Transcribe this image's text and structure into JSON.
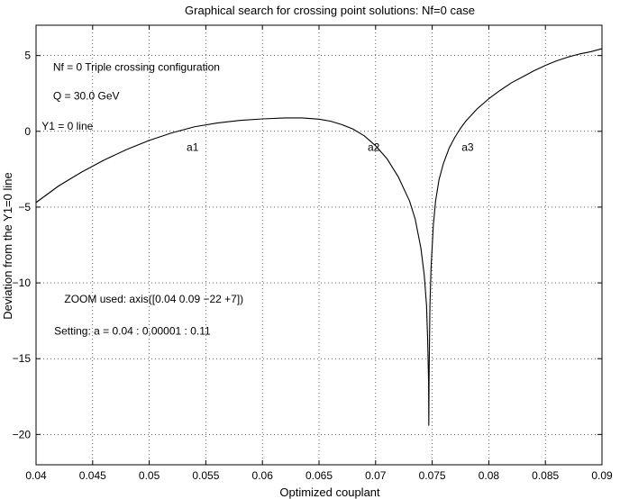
{
  "chart_data": {
    "type": "line",
    "title": "Graphical search for crossing point solutions: Nf=0 case",
    "xlabel": "Optimized couplant",
    "ylabel": "Deviation from the Y1=0 line",
    "xlim": [
      0.04,
      0.09
    ],
    "ylim": [
      -22,
      7
    ],
    "xticks": [
      0.04,
      0.045,
      0.05,
      0.055,
      0.06,
      0.065,
      0.07,
      0.075,
      0.08,
      0.085,
      0.09
    ],
    "xtick_labels": [
      "0.04",
      "0.045",
      "0.05",
      "0.055",
      "0.06",
      "0.065",
      "0.07",
      "0.075",
      "0.08",
      "0.085",
      "0.09"
    ],
    "yticks": [
      5,
      0,
      -5,
      -10,
      -15,
      -20
    ],
    "ytick_labels": [
      "5",
      "0",
      "−5",
      "−10",
      "−15",
      "−20"
    ],
    "grid": true,
    "grid_style": "dotted",
    "line_color": "#000000",
    "series": [
      {
        "x": [
          0.04,
          0.042,
          0.044,
          0.046,
          0.048,
          0.05,
          0.052,
          0.054,
          0.056,
          0.058,
          0.06,
          0.062,
          0.0635,
          0.065,
          0.066,
          0.067,
          0.068,
          0.069,
          0.07,
          0.071,
          0.072,
          0.073,
          0.0735,
          0.074,
          0.0743,
          0.0745,
          0.0746,
          0.07468,
          0.0747,
          0.07472,
          0.0748,
          0.0749,
          0.0751,
          0.0753,
          0.0756,
          0.076,
          0.0765,
          0.077,
          0.0775,
          0.078,
          0.079,
          0.08,
          0.081,
          0.082,
          0.083,
          0.084,
          0.085,
          0.086,
          0.087,
          0.088,
          0.089,
          0.09
        ],
        "y": [
          -4.7,
          -3.6,
          -2.7,
          -1.9,
          -1.2,
          -0.6,
          -0.1,
          0.3,
          0.55,
          0.72,
          0.82,
          0.88,
          0.88,
          0.8,
          0.67,
          0.45,
          0.15,
          -0.3,
          -0.95,
          -1.8,
          -3.0,
          -4.6,
          -5.8,
          -7.7,
          -9.5,
          -11.5,
          -13.8,
          -16.5,
          -19.4,
          -16.5,
          -11.5,
          -9.0,
          -6.2,
          -4.6,
          -3.2,
          -2.1,
          -1.1,
          -0.4,
          0.2,
          0.7,
          1.5,
          2.15,
          2.7,
          3.2,
          3.6,
          4.0,
          4.35,
          4.65,
          4.9,
          5.1,
          5.25,
          5.45
        ]
      }
    ],
    "annotations": [
      {
        "text": "Nf = 0 Triple crossing configuration",
        "x": 0.0415,
        "y": 4.0
      },
      {
        "text": "Q = 30.0 GeV",
        "x": 0.0415,
        "y": 2.1
      },
      {
        "text": "Y1 = 0 line",
        "x": 0.0405,
        "y": 0.1
      },
      {
        "text": "a1",
        "x": 0.0533,
        "y": -1.3
      },
      {
        "text": "a2",
        "x": 0.0693,
        "y": -1.3
      },
      {
        "text": "a3",
        "x": 0.0776,
        "y": -1.3
      },
      {
        "text": "ZOOM used: axis([0.04  0.09  −22 +7])",
        "x": 0.0425,
        "y": -11.3
      },
      {
        "text": "Setting: a = 0.04 : 0.00001 : 0.11",
        "x": 0.0416,
        "y": -13.4
      }
    ]
  }
}
